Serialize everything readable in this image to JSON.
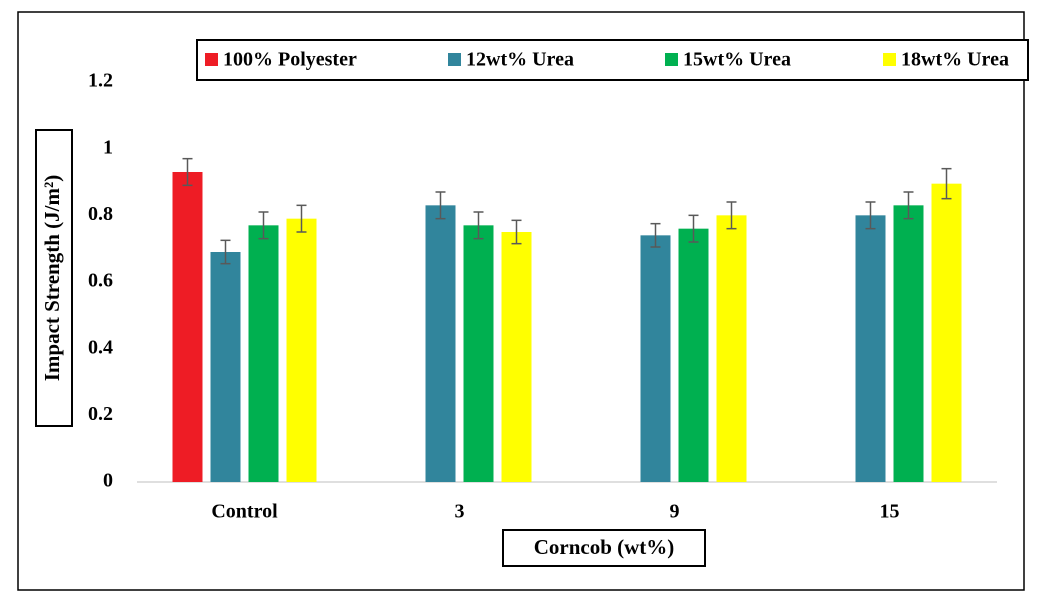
{
  "chart_data": {
    "type": "bar",
    "x_label": "Corncob (wt%)",
    "y_label": "Impact Strength (J/m²)",
    "categories": [
      "Control",
      "3",
      "9",
      "15"
    ],
    "series": [
      {
        "name": "100% Polyester",
        "color": "#ee1c25",
        "values": [
          0.93,
          null,
          null,
          null
        ],
        "errors": [
          0.04,
          null,
          null,
          null
        ]
      },
      {
        "name": "12wt% Urea",
        "color": "#31859c",
        "values": [
          0.69,
          0.83,
          0.74,
          0.8
        ],
        "errors": [
          0.035,
          0.04,
          0.035,
          0.04
        ]
      },
      {
        "name": "15wt% Urea",
        "color": "#00b050",
        "values": [
          0.77,
          0.77,
          0.76,
          0.83
        ],
        "errors": [
          0.04,
          0.04,
          0.04,
          0.04
        ]
      },
      {
        "name": "18wt% Urea",
        "color": "#ffff00",
        "values": [
          0.79,
          0.75,
          0.8,
          0.895
        ],
        "errors": [
          0.04,
          0.035,
          0.04,
          0.045
        ]
      }
    ],
    "ylim": [
      0,
      1.2
    ],
    "yticks": [
      0,
      0.2,
      0.4,
      0.6,
      0.8,
      1,
      1.2
    ],
    "legend": "top"
  }
}
